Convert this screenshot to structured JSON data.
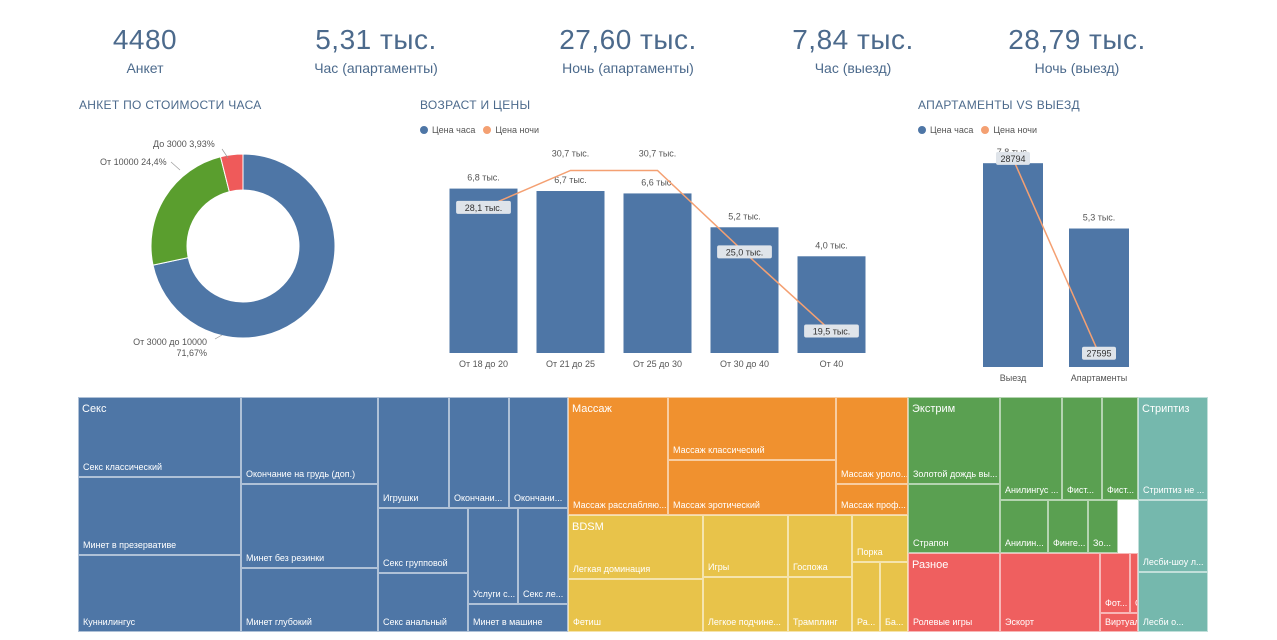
{
  "kpis": [
    {
      "value": "4480",
      "label": "Анкет"
    },
    {
      "value": "5,31 тыс.",
      "label": "Час (апартаменты)"
    },
    {
      "value": "27,60 тыс.",
      "label": "Ночь (апартаменты)"
    },
    {
      "value": "7,84 тыс.",
      "label": "Час (выезд)"
    },
    {
      "value": "28,79 тыс.",
      "label": "Ночь (выезд)"
    }
  ],
  "colors": {
    "hour": "#4e76a6",
    "night": "#f4a072",
    "green": "#5a9e2e",
    "red": "#ef5a5a",
    "orange": "#f0912f",
    "yellow": "#e8c34a",
    "extreme": "#5aa051",
    "misc": "#ef5f5f",
    "strip": "#75b8ad"
  },
  "legend": {
    "hour": "Цена часа",
    "night": "Цена ночи"
  },
  "chart_data": [
    {
      "type": "pie",
      "title": "АНКЕТ ПО СТОИМОСТИ ЧАСА",
      "slices": [
        {
          "label": "От 3000 до 10000",
          "pct_label": "71,67%",
          "value": 71.67,
          "color": "#4e76a6"
        },
        {
          "label": "От 10000",
          "pct_label": "24,4%",
          "value": 24.4,
          "color": "#5a9e2e"
        },
        {
          "label": "До 3000",
          "pct_label": "3,93%",
          "value": 3.93,
          "color": "#ef5a5a"
        }
      ]
    },
    {
      "type": "bar",
      "title": "ВОЗРАСТ И ЦЕНЫ",
      "categories": [
        "От 18 до 20",
        "От 21 до 25",
        "От 25 до 30",
        "От 30 до 40",
        "От 40"
      ],
      "series": [
        {
          "name": "Цена часа",
          "type": "bar",
          "values": [
            6.8,
            6.7,
            6.6,
            5.2,
            4.0
          ],
          "labels": [
            "6,8 тыс.",
            "6,7 тыс.",
            "6,6 тыс.",
            "5,2 тыс.",
            "4,0 тыс."
          ]
        },
        {
          "name": "Цена ночи",
          "type": "line",
          "values": [
            28.1,
            30.7,
            30.7,
            25.0,
            19.5
          ],
          "labels": [
            "28,1 тыс.",
            "30,7 тыс.",
            "30,7 тыс.",
            "25,0 тыс.",
            "19,5 тыс."
          ]
        }
      ]
    },
    {
      "type": "bar",
      "title": "АПАРТАМЕНТЫ VS ВЫЕЗД",
      "categories": [
        "Выезд",
        "Апартаменты"
      ],
      "series": [
        {
          "name": "Цена часа",
          "type": "bar",
          "values": [
            7.8,
            5.3
          ],
          "labels": [
            "7,8 тыс.",
            "5,3 тыс."
          ]
        },
        {
          "name": "Цена ночи",
          "type": "line",
          "values": [
            28794,
            27595
          ],
          "labels": [
            "28794",
            "27595"
          ]
        }
      ]
    },
    {
      "type": "treemap",
      "groups": [
        {
          "name": "Секс",
          "color": "#4e76a6",
          "items": [
            "Секс классический",
            "Минет в презервативе",
            "Куннилингус",
            "Окончание на грудь (доп.)",
            "Минет без резинки",
            "Минет глубокий",
            "Игрушки",
            "Окончани...",
            "Окончани...",
            "Секс групповой",
            "Секс анальный",
            "Услуги с...",
            "Секс ле...",
            "Минет в машине"
          ]
        },
        {
          "name": "Массаж",
          "color": "#f0912f",
          "items": [
            "Массаж классический",
            "Массаж расслабляю...",
            "Массаж эротический",
            "Массаж уроло...",
            "Массаж проф..."
          ]
        },
        {
          "name": "BDSM",
          "color": "#e8c34a",
          "items": [
            "Легкая доминация",
            "Фетиш",
            "Игры",
            "Легкое подчине...",
            "Госпожа",
            "Трамплинг",
            "Порка",
            "Ра...",
            "Ба..."
          ]
        },
        {
          "name": "Экстрим",
          "color": "#5aa051",
          "items": [
            "Золотой дождь вы...",
            "Страпон",
            "Анилингус ...",
            "Анилин...",
            "Фист...",
            "Финге...",
            "Фист...",
            "Зо..."
          ]
        },
        {
          "name": "Разное",
          "color": "#ef5f5f",
          "items": [
            "Ролевые игры",
            "Эскорт",
            "Фот...",
            "Се...",
            "Виртуальн..."
          ]
        },
        {
          "name": "Стриптиз",
          "color": "#75b8ad",
          "items": [
            "Стриптиз не ...",
            "Лесби-шоу л...",
            "Лесби о..."
          ]
        }
      ]
    }
  ]
}
